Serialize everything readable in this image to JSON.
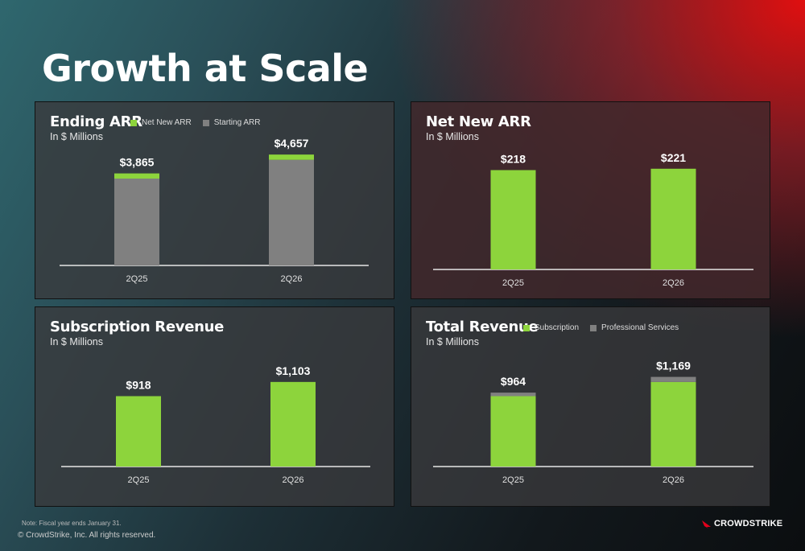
{
  "page_title": "Growth at Scale",
  "footer": {
    "note": "Note: Fiscal year ends January 31.",
    "copyright": "© CrowdStrike, Inc. All rights reserved.",
    "logo_text": "CROWDSTRIKE"
  },
  "colors": {
    "green": "#8dd43c",
    "gray": "#808080",
    "logo_red": "#e3001b"
  },
  "chart_data": [
    {
      "id": "ending-arr",
      "type": "bar",
      "stacked": true,
      "title": "Ending ARR",
      "subtitle": "In $ Millions",
      "categories": [
        "2Q25",
        "2Q26"
      ],
      "series": [
        {
          "name": "Starting ARR",
          "values": [
            3647,
            4436
          ],
          "color": "#808080"
        },
        {
          "name": "Net New ARR",
          "values": [
            218,
            221
          ],
          "color": "#8dd43c"
        }
      ],
      "data_labels": [
        "$3,865",
        "$4,657"
      ],
      "legend": [
        "Net New ARR",
        "Starting ARR"
      ],
      "legend_position": "top",
      "ylim": [
        0,
        5000
      ]
    },
    {
      "id": "net-new-arr",
      "type": "bar",
      "title": "Net New ARR",
      "subtitle": "In $ Millions",
      "categories": [
        "2Q25",
        "2Q26"
      ],
      "values": [
        218,
        221
      ],
      "data_labels": [
        "$218",
        "$221"
      ],
      "color": "#8dd43c",
      "ylim": [
        0,
        270
      ]
    },
    {
      "id": "subscription-revenue",
      "type": "bar",
      "title": "Subscription Revenue",
      "subtitle": "In $ Millions",
      "categories": [
        "2Q25",
        "2Q26"
      ],
      "values": [
        918,
        1103
      ],
      "data_labels": [
        "$918",
        "$1,103"
      ],
      "color": "#8dd43c",
      "ylim": [
        0,
        1500
      ]
    },
    {
      "id": "total-revenue",
      "type": "bar",
      "stacked": true,
      "title": "Total Revenue",
      "subtitle": "In $ Millions",
      "categories": [
        "2Q25",
        "2Q26"
      ],
      "series": [
        {
          "name": "Subscription",
          "values": [
            918,
            1103
          ],
          "color": "#8dd43c"
        },
        {
          "name": "Professional Services",
          "values": [
            46,
            66
          ],
          "color": "#808080"
        }
      ],
      "data_labels": [
        "$964",
        "$1,169"
      ],
      "legend": [
        "Subscription",
        "Professional Services"
      ],
      "legend_position": "top",
      "ylim": [
        0,
        1500
      ]
    }
  ]
}
